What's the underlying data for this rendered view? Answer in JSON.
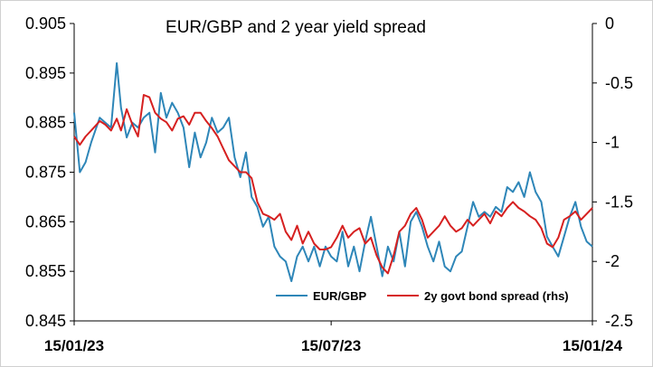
{
  "chart_data": {
    "type": "line",
    "title": "EUR/GBP and 2 year yield spread",
    "x_ticks": [
      "15/01/23",
      "15/07/23",
      "15/01/24"
    ],
    "x_range": [
      "2023-01-15",
      "2024-01-15"
    ],
    "y_left": {
      "range": [
        0.845,
        0.905
      ],
      "tick_labels": [
        "0.905",
        "0.895",
        "0.885",
        "0.875",
        "0.865",
        "0.855",
        "0.845"
      ]
    },
    "y_right": {
      "range": [
        -2.5,
        0
      ],
      "tick_labels": [
        "0",
        "-0.5",
        "-1",
        "-1.5",
        "-2",
        "-2.5"
      ]
    },
    "grid": false,
    "legend_position": "bottom-right",
    "series": [
      {
        "name": "EUR/GBP",
        "axis": "left",
        "color": "#2E86B8",
        "points": [
          [
            "2023-01-15",
            0.887
          ],
          [
            "2023-01-19",
            0.875
          ],
          [
            "2023-01-23",
            0.877
          ],
          [
            "2023-01-27",
            0.881
          ],
          [
            "2023-02-02",
            0.886
          ],
          [
            "2023-02-06",
            0.885
          ],
          [
            "2023-02-10",
            0.884
          ],
          [
            "2023-02-14",
            0.897
          ],
          [
            "2023-02-17",
            0.888
          ],
          [
            "2023-02-21",
            0.882
          ],
          [
            "2023-02-25",
            0.885
          ],
          [
            "2023-03-01",
            0.884
          ],
          [
            "2023-03-05",
            0.886
          ],
          [
            "2023-03-09",
            0.887
          ],
          [
            "2023-03-13",
            0.879
          ],
          [
            "2023-03-17",
            0.891
          ],
          [
            "2023-03-21",
            0.886
          ],
          [
            "2023-03-25",
            0.889
          ],
          [
            "2023-03-29",
            0.887
          ],
          [
            "2023-04-02",
            0.884
          ],
          [
            "2023-04-06",
            0.876
          ],
          [
            "2023-04-10",
            0.883
          ],
          [
            "2023-04-14",
            0.878
          ],
          [
            "2023-04-18",
            0.881
          ],
          [
            "2023-04-22",
            0.886
          ],
          [
            "2023-04-26",
            0.883
          ],
          [
            "2023-04-30",
            0.884
          ],
          [
            "2023-05-04",
            0.886
          ],
          [
            "2023-05-08",
            0.878
          ],
          [
            "2023-05-12",
            0.874
          ],
          [
            "2023-05-16",
            0.879
          ],
          [
            "2023-05-20",
            0.87
          ],
          [
            "2023-05-24",
            0.868
          ],
          [
            "2023-05-28",
            0.864
          ],
          [
            "2023-06-01",
            0.866
          ],
          [
            "2023-06-05",
            0.86
          ],
          [
            "2023-06-09",
            0.858
          ],
          [
            "2023-06-13",
            0.857
          ],
          [
            "2023-06-17",
            0.853
          ],
          [
            "2023-06-21",
            0.858
          ],
          [
            "2023-06-25",
            0.86
          ],
          [
            "2023-06-29",
            0.857
          ],
          [
            "2023-07-03",
            0.86
          ],
          [
            "2023-07-07",
            0.856
          ],
          [
            "2023-07-11",
            0.86
          ],
          [
            "2023-07-15",
            0.858
          ],
          [
            "2023-07-19",
            0.857
          ],
          [
            "2023-07-23",
            0.863
          ],
          [
            "2023-07-27",
            0.856
          ],
          [
            "2023-07-31",
            0.86
          ],
          [
            "2023-08-04",
            0.855
          ],
          [
            "2023-08-08",
            0.861
          ],
          [
            "2023-08-12",
            0.866
          ],
          [
            "2023-08-16",
            0.86
          ],
          [
            "2023-08-20",
            0.854
          ],
          [
            "2023-08-24",
            0.86
          ],
          [
            "2023-08-28",
            0.857
          ],
          [
            "2023-09-01",
            0.863
          ],
          [
            "2023-09-05",
            0.856
          ],
          [
            "2023-09-09",
            0.865
          ],
          [
            "2023-09-13",
            0.867
          ],
          [
            "2023-09-17",
            0.864
          ],
          [
            "2023-09-21",
            0.86
          ],
          [
            "2023-09-25",
            0.857
          ],
          [
            "2023-09-29",
            0.861
          ],
          [
            "2023-10-03",
            0.856
          ],
          [
            "2023-10-07",
            0.855
          ],
          [
            "2023-10-11",
            0.858
          ],
          [
            "2023-10-15",
            0.859
          ],
          [
            "2023-10-19",
            0.864
          ],
          [
            "2023-10-23",
            0.869
          ],
          [
            "2023-10-27",
            0.866
          ],
          [
            "2023-10-31",
            0.867
          ],
          [
            "2023-11-04",
            0.866
          ],
          [
            "2023-11-08",
            0.868
          ],
          [
            "2023-11-12",
            0.867
          ],
          [
            "2023-11-16",
            0.872
          ],
          [
            "2023-11-20",
            0.871
          ],
          [
            "2023-11-24",
            0.873
          ],
          [
            "2023-11-28",
            0.87
          ],
          [
            "2023-12-02",
            0.875
          ],
          [
            "2023-12-06",
            0.871
          ],
          [
            "2023-12-10",
            0.869
          ],
          [
            "2023-12-14",
            0.862
          ],
          [
            "2023-12-18",
            0.86
          ],
          [
            "2023-12-22",
            0.858
          ],
          [
            "2023-12-26",
            0.862
          ],
          [
            "2023-12-30",
            0.866
          ],
          [
            "2024-01-03",
            0.869
          ],
          [
            "2024-01-07",
            0.864
          ],
          [
            "2024-01-11",
            0.861
          ],
          [
            "2024-01-15",
            0.86
          ]
        ]
      },
      {
        "name": "2y govt bond spread (rhs)",
        "axis": "right",
        "color": "#D62020",
        "points": [
          [
            "2023-01-15",
            -0.95
          ],
          [
            "2023-01-19",
            -1.02
          ],
          [
            "2023-01-23",
            -0.95
          ],
          [
            "2023-01-27",
            -0.9
          ],
          [
            "2023-02-02",
            -0.82
          ],
          [
            "2023-02-06",
            -0.85
          ],
          [
            "2023-02-10",
            -0.9
          ],
          [
            "2023-02-14",
            -0.8
          ],
          [
            "2023-02-17",
            -0.9
          ],
          [
            "2023-02-21",
            -0.72
          ],
          [
            "2023-02-25",
            -0.85
          ],
          [
            "2023-03-01",
            -0.95
          ],
          [
            "2023-03-05",
            -0.6
          ],
          [
            "2023-03-09",
            -0.62
          ],
          [
            "2023-03-13",
            -0.75
          ],
          [
            "2023-03-17",
            -0.8
          ],
          [
            "2023-03-21",
            -0.83
          ],
          [
            "2023-03-25",
            -0.9
          ],
          [
            "2023-03-29",
            -0.8
          ],
          [
            "2023-04-02",
            -0.78
          ],
          [
            "2023-04-06",
            -0.85
          ],
          [
            "2023-04-10",
            -0.75
          ],
          [
            "2023-04-14",
            -0.75
          ],
          [
            "2023-04-18",
            -0.82
          ],
          [
            "2023-04-22",
            -0.88
          ],
          [
            "2023-04-26",
            -0.95
          ],
          [
            "2023-04-30",
            -1.05
          ],
          [
            "2023-05-04",
            -1.15
          ],
          [
            "2023-05-08",
            -1.2
          ],
          [
            "2023-05-12",
            -1.25
          ],
          [
            "2023-05-16",
            -1.25
          ],
          [
            "2023-05-20",
            -1.3
          ],
          [
            "2023-05-24",
            -1.5
          ],
          [
            "2023-05-28",
            -1.6
          ],
          [
            "2023-06-01",
            -1.62
          ],
          [
            "2023-06-05",
            -1.65
          ],
          [
            "2023-06-09",
            -1.6
          ],
          [
            "2023-06-13",
            -1.75
          ],
          [
            "2023-06-17",
            -1.82
          ],
          [
            "2023-06-21",
            -1.7
          ],
          [
            "2023-06-25",
            -1.85
          ],
          [
            "2023-06-29",
            -1.75
          ],
          [
            "2023-07-03",
            -1.85
          ],
          [
            "2023-07-07",
            -1.9
          ],
          [
            "2023-07-11",
            -1.9
          ],
          [
            "2023-07-15",
            -1.88
          ],
          [
            "2023-07-19",
            -1.8
          ],
          [
            "2023-07-23",
            -1.7
          ],
          [
            "2023-07-27",
            -1.8
          ],
          [
            "2023-07-31",
            -1.75
          ],
          [
            "2023-08-04",
            -1.72
          ],
          [
            "2023-08-08",
            -1.85
          ],
          [
            "2023-08-12",
            -1.8
          ],
          [
            "2023-08-16",
            -1.95
          ],
          [
            "2023-08-20",
            -2.05
          ],
          [
            "2023-08-24",
            -2.1
          ],
          [
            "2023-08-28",
            -1.95
          ],
          [
            "2023-09-01",
            -1.75
          ],
          [
            "2023-09-05",
            -1.7
          ],
          [
            "2023-09-09",
            -1.6
          ],
          [
            "2023-09-13",
            -1.55
          ],
          [
            "2023-09-17",
            -1.65
          ],
          [
            "2023-09-21",
            -1.8
          ],
          [
            "2023-09-25",
            -1.75
          ],
          [
            "2023-09-29",
            -1.7
          ],
          [
            "2023-10-03",
            -1.62
          ],
          [
            "2023-10-07",
            -1.7
          ],
          [
            "2023-10-11",
            -1.75
          ],
          [
            "2023-10-15",
            -1.72
          ],
          [
            "2023-10-19",
            -1.65
          ],
          [
            "2023-10-23",
            -1.7
          ],
          [
            "2023-10-27",
            -1.65
          ],
          [
            "2023-10-31",
            -1.6
          ],
          [
            "2023-11-04",
            -1.68
          ],
          [
            "2023-11-08",
            -1.58
          ],
          [
            "2023-11-12",
            -1.62
          ],
          [
            "2023-11-16",
            -1.55
          ],
          [
            "2023-11-20",
            -1.5
          ],
          [
            "2023-11-24",
            -1.55
          ],
          [
            "2023-11-28",
            -1.58
          ],
          [
            "2023-12-02",
            -1.62
          ],
          [
            "2023-12-06",
            -1.65
          ],
          [
            "2023-12-10",
            -1.72
          ],
          [
            "2023-12-14",
            -1.85
          ],
          [
            "2023-12-18",
            -1.88
          ],
          [
            "2023-12-22",
            -1.8
          ],
          [
            "2023-12-26",
            -1.65
          ],
          [
            "2023-12-30",
            -1.62
          ],
          [
            "2024-01-03",
            -1.58
          ],
          [
            "2024-01-07",
            -1.65
          ],
          [
            "2024-01-11",
            -1.6
          ],
          [
            "2024-01-15",
            -1.55
          ]
        ]
      }
    ]
  }
}
